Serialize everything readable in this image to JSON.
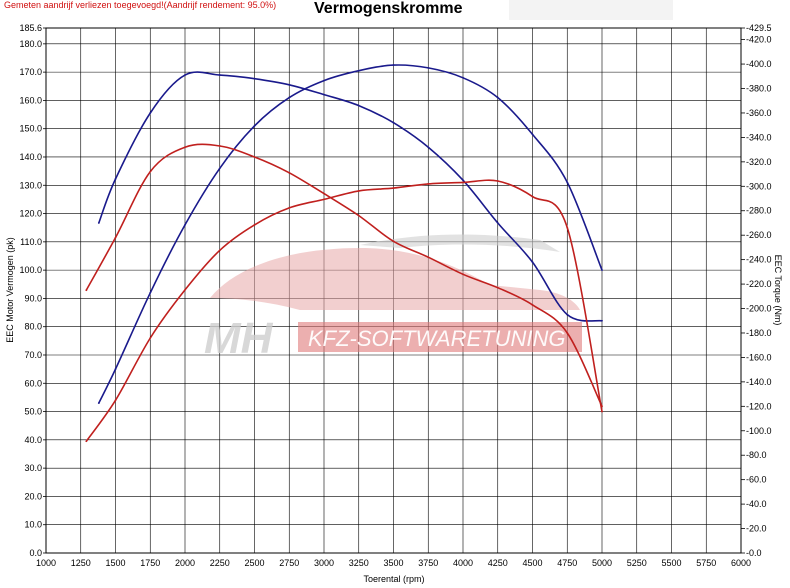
{
  "note": "Gemeten aandrijf verliezen toegevoegd!(Aandrijf rendement: 95.0%)",
  "chart_data": {
    "type": "line",
    "title": "Vermogenskromme",
    "xlabel": "Toerental (rpm)",
    "ylabel": "EEC Motor Vermogen (pk)",
    "y2label": "EEC Torque (Nm)",
    "xlim": [
      1000,
      6000
    ],
    "ylim": [
      0,
      185.6
    ],
    "y2lim": [
      0,
      429.5
    ],
    "xticks": [
      1000,
      1250,
      1500,
      1750,
      2000,
      2250,
      2500,
      2750,
      3000,
      3250,
      3500,
      3750,
      4000,
      4250,
      4500,
      4750,
      5000,
      5250,
      5500,
      5750,
      6000
    ],
    "yticks": [
      "0.0",
      "10.0",
      "20.0",
      "30.0",
      "40.0",
      "50.0",
      "60.0",
      "70.0",
      "80.0",
      "90.0",
      "100.0",
      "110.0",
      "120.0",
      "130.0",
      "140.0",
      "150.0",
      "160.0",
      "170.0",
      "180.0",
      "185.6"
    ],
    "y2ticks": [
      "0.0",
      "20.0",
      "40.0",
      "60.0",
      "80.0",
      "100.0",
      "120.0",
      "140.0",
      "160.0",
      "180.0",
      "200.0",
      "220.0",
      "240.0",
      "260.0",
      "280.0",
      "300.0",
      "320.0",
      "340.0",
      "360.0",
      "380.0",
      "400.0",
      "420.0",
      "429.5"
    ],
    "grid": true,
    "watermark": {
      "left": "MH",
      "right": "KFZ-SOFTWARETUNING"
    },
    "series": [
      {
        "color": "#1a1a8c",
        "axis": "left",
        "x": [
          1380,
          1500,
          1750,
          2000,
          2250,
          2500,
          2750,
          3000,
          3250,
          3500,
          3750,
          4000,
          4250,
          4500,
          4750,
          5000
        ],
        "y": [
          53,
          65,
          92,
          116,
          136,
          151,
          161,
          167,
          170.5,
          172.5,
          171.5,
          168,
          161,
          148,
          131,
          100
        ]
      },
      {
        "color": "#1a1a8c",
        "axis": "right",
        "x": [
          1380,
          1500,
          1750,
          2000,
          2250,
          2500,
          2750,
          3000,
          3250,
          3500,
          3750,
          4000,
          4250,
          4500,
          4750,
          5000
        ],
        "y": [
          270,
          306,
          360,
          391,
          391,
          388,
          383,
          375,
          366,
          352,
          332,
          305,
          270,
          238,
          195,
          190
        ]
      },
      {
        "color": "#c0201e",
        "axis": "left",
        "x": [
          1290,
          1500,
          1750,
          2000,
          2250,
          2500,
          2750,
          3000,
          3250,
          3500,
          3750,
          4000,
          4250,
          4500,
          4750,
          5000
        ],
        "y": [
          39.5,
          54,
          76,
          93,
          107,
          116,
          122,
          125,
          128,
          129,
          130.5,
          131,
          131.5,
          126,
          115,
          50
        ]
      },
      {
        "color": "#c0201e",
        "axis": "right",
        "x": [
          1290,
          1500,
          1750,
          2000,
          2250,
          2500,
          2750,
          3000,
          3250,
          3500,
          3750,
          4000,
          4250,
          4500,
          4750,
          5000
        ],
        "y": [
          215,
          258,
          312,
          332,
          333,
          324,
          311,
          294,
          276,
          255,
          242,
          228,
          217,
          203,
          180,
          120
        ]
      }
    ]
  }
}
